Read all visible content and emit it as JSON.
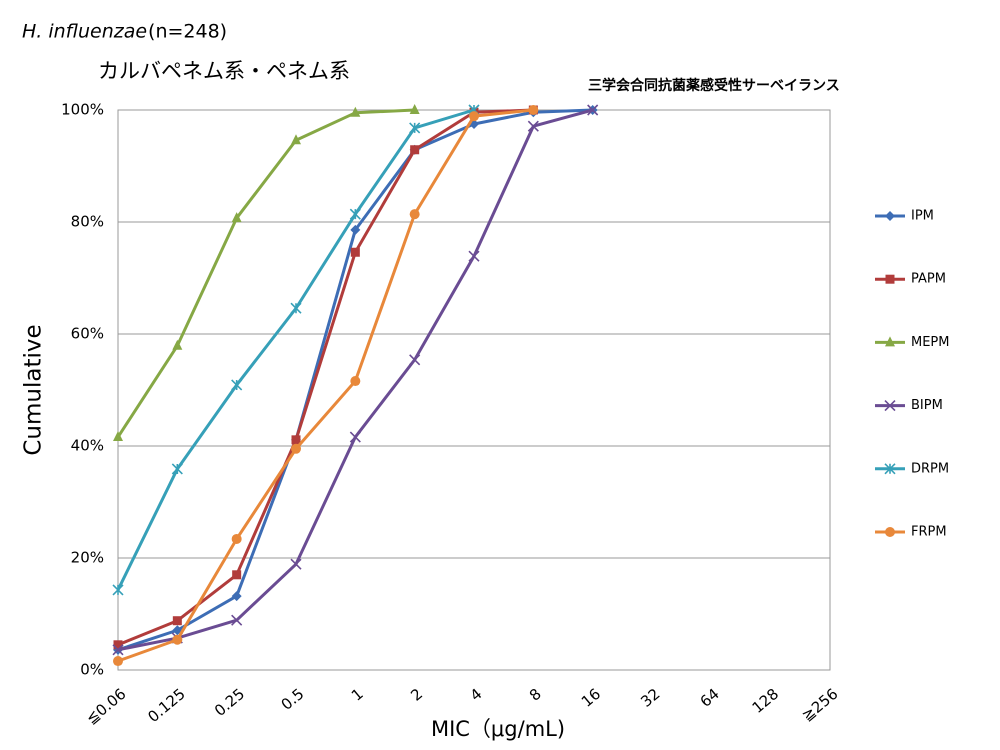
{
  "chart_data": {
    "type": "line",
    "title_italic": "H. influenzae",
    "title_rest": "(n=248)",
    "subtitle": "カルバペネム系・ペネム系",
    "source": "三学会合同抗菌薬感受性サーベイランス",
    "y_label": "Cumulative",
    "x_label": "MIC（μg/mL)",
    "categories": [
      "≦0.06",
      "0.125",
      "0.25",
      "0.5",
      "1",
      "2",
      "4",
      "8",
      "16",
      "32",
      "64",
      "128",
      "≧256"
    ],
    "ylim": [
      0,
      100
    ],
    "yticks": [
      {
        "value": 0,
        "label": "0%"
      },
      {
        "value": 20,
        "label": "20%"
      },
      {
        "value": 40,
        "label": "40%"
      },
      {
        "value": 60,
        "label": "60%"
      },
      {
        "value": 80,
        "label": "80%"
      },
      {
        "value": 100,
        "label": "100%"
      }
    ],
    "grid": true,
    "legend": "right",
    "series": [
      {
        "name": "IPM",
        "color": "#3d6db5",
        "marker": "diamond",
        "values": [
          3.6,
          7.1,
          13.2,
          41.1,
          78.6,
          92.9,
          97.5,
          99.6,
          100,
          null,
          null,
          null,
          null
        ]
      },
      {
        "name": "PAPM",
        "color": "#b13c3b",
        "marker": "square",
        "values": [
          4.5,
          8.8,
          17.0,
          41.1,
          74.6,
          92.9,
          99.6,
          100,
          null,
          null,
          null,
          null,
          null
        ]
      },
      {
        "name": "MEPM",
        "color": "#86a845",
        "marker": "triangle",
        "values": [
          41.6,
          57.9,
          80.7,
          94.6,
          99.5,
          100,
          null,
          null,
          null,
          null,
          null,
          null,
          null
        ]
      },
      {
        "name": "BIPM",
        "color": "#6a4c93",
        "marker": "x",
        "values": [
          3.6,
          5.7,
          8.9,
          18.9,
          41.6,
          55.4,
          73.9,
          97.1,
          100,
          null,
          null,
          null,
          null
        ]
      },
      {
        "name": "DRPM",
        "color": "#36a0b8",
        "marker": "star",
        "values": [
          14.3,
          35.9,
          50.9,
          64.6,
          81.4,
          96.8,
          100,
          null,
          null,
          null,
          null,
          null,
          null
        ]
      },
      {
        "name": "FRPM",
        "color": "#e8883a",
        "marker": "circle",
        "values": [
          1.6,
          5.4,
          23.4,
          39.5,
          51.6,
          81.4,
          98.9,
          100,
          null,
          null,
          null,
          null,
          null
        ]
      }
    ]
  }
}
